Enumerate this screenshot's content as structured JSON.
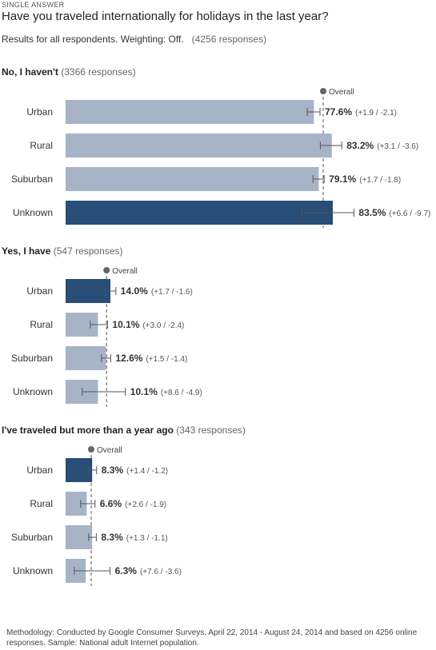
{
  "header": {
    "kicker": "SINGLE ANSWER",
    "question": "Have you traveled internationally for holidays in the last year?",
    "results_label": "Results for all respondents. Weighting: Off.",
    "responses_label": "(4256 responses)"
  },
  "colors": {
    "bar_light": "#a7b4c8",
    "bar_dark": "#284d77",
    "error_bar": "#555555",
    "overall_line": "#555555"
  },
  "overall_marker_label": "Overall",
  "chart_data": [
    {
      "type": "bar",
      "orientation": "horizontal",
      "title": "No, I haven't",
      "responses_label": "(3366 responses)",
      "overall": 80.5,
      "categories": [
        "Urban",
        "Rural",
        "Suburban",
        "Unknown"
      ],
      "values": [
        77.6,
        83.2,
        79.1,
        83.5
      ],
      "labels": [
        "77.6%",
        "83.2%",
        "79.1%",
        "83.5%"
      ],
      "error_labels": [
        "(+1.9 / -2.1)",
        "(+3.1 / -3.6)",
        "(+1.7 / -1.8)",
        "(+6.6 / -9.7)"
      ],
      "error_plus": [
        1.9,
        3.1,
        1.7,
        6.6
      ],
      "error_minus": [
        2.1,
        3.6,
        1.8,
        9.7
      ],
      "highlight": [
        false,
        false,
        false,
        true
      ]
    },
    {
      "type": "bar",
      "orientation": "horizontal",
      "title": "Yes, I have",
      "responses_label": "(547 responses)",
      "overall": 12.8,
      "categories": [
        "Urban",
        "Rural",
        "Suburban",
        "Unknown"
      ],
      "values": [
        14.0,
        10.1,
        12.6,
        10.1
      ],
      "labels": [
        "14.0%",
        "10.1%",
        "12.6%",
        "10.1%"
      ],
      "error_labels": [
        "(+1.7 / -1.6)",
        "(+3.0 / -2.4)",
        "(+1.5 / -1.4)",
        "(+8.6 / -4.9)"
      ],
      "error_plus": [
        1.7,
        3.0,
        1.5,
        8.6
      ],
      "error_minus": [
        1.6,
        2.4,
        1.4,
        4.9
      ],
      "highlight": [
        true,
        false,
        false,
        false
      ]
    },
    {
      "type": "bar",
      "orientation": "horizontal",
      "title": "I've traveled but more than a year ago",
      "responses_label": "(343 responses)",
      "overall": 8.0,
      "categories": [
        "Urban",
        "Rural",
        "Suburban",
        "Unknown"
      ],
      "values": [
        8.3,
        6.6,
        8.3,
        6.3
      ],
      "labels": [
        "8.3%",
        "6.6%",
        "8.3%",
        "6.3%"
      ],
      "error_labels": [
        "(+1.4 / -1.2)",
        "(+2.6 / -1.9)",
        "(+1.3 / -1.1)",
        "(+7.6 / -3.6)"
      ],
      "error_plus": [
        1.4,
        2.6,
        1.3,
        7.6
      ],
      "error_minus": [
        1.2,
        1.9,
        1.1,
        3.6
      ],
      "highlight": [
        true,
        false,
        false,
        false
      ]
    }
  ],
  "footer": {
    "methodology": "Methodology: Conducted by Google Consumer Surveys, April 22, 2014 - August 24, 2014 and based on 4256 online responses. Sample: National adult Internet population."
  }
}
